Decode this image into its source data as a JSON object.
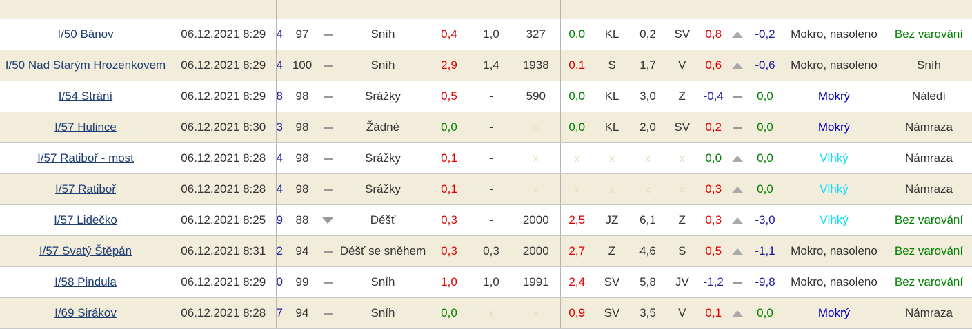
{
  "colors": {
    "red": "#e00000",
    "green": "#008000",
    "blue": "#0000c0",
    "cyan": "#00e0ff",
    "row_alt": "#f2ecda"
  },
  "rows": [
    {
      "name": "",
      "time": "",
      "c": "",
      "h": "",
      "trend1": "",
      "precip": "",
      "t1": "",
      "t2": "",
      "t3": "",
      "t4": "",
      "wind": "",
      "t5": "",
      "dir": "",
      "t6": "",
      "trend2": "",
      "t7": "",
      "state": "",
      "warn": ""
    },
    {
      "name": "I/50 Bánov",
      "time": "06.12.2021 8:29",
      "c": "4",
      "h": "97",
      "trend1": "dash-icon",
      "precip": "Sníh",
      "t1": "0,4",
      "t2": "1,0",
      "t3": "327",
      "t4": "0,0",
      "wind": "KL",
      "t5": "0,2",
      "dir": "SV",
      "t6": "0,8",
      "trend2": "up-icon",
      "t7": "-0,2",
      "state": "Mokro, nasoleno",
      "warn": "Bez varování"
    },
    {
      "name": "I/50 Nad Starým Hrozenkovem",
      "time": "06.12.2021 8:29",
      "c": "4",
      "h": "100",
      "trend1": "dash-icon",
      "precip": "Sníh",
      "t1": "2,9",
      "t2": "1,4",
      "t3": "1938",
      "t4": "0,1",
      "wind": "S",
      "t5": "1,7",
      "dir": "V",
      "t6": "0,6",
      "trend2": "up-icon",
      "t7": "-0,6",
      "state": "Mokro, nasoleno",
      "warn": "Sníh"
    },
    {
      "name": "I/54 Strání",
      "time": "06.12.2021 8:29",
      "c": "8",
      "h": "98",
      "trend1": "dash-icon",
      "precip": "Srážky",
      "t1": "0,5",
      "t2": "-",
      "t3": "590",
      "t4": "0,0",
      "wind": "KL",
      "t5": "3,0",
      "dir": "Z",
      "t6": "-0,4",
      "trend2": "dash-icon",
      "t7": "0,0",
      "state": "Mokrý",
      "warn": "Náledí"
    },
    {
      "name": "I/57 Hulince",
      "time": "06.12.2021 8:30",
      "c": "3",
      "h": "98",
      "trend1": "dash-icon",
      "precip": "Žádné",
      "t1": "0,0",
      "t2": "-",
      "t3": "x",
      "t4": "0,0",
      "wind": "KL",
      "t5": "2,0",
      "dir": "SV",
      "t6": "0,2",
      "trend2": "dash-icon",
      "t7": "0,0",
      "state": "Mokrý",
      "warn": "Námraza"
    },
    {
      "name": "I/57 Ratiboř - most",
      "time": "06.12.2021 8:28",
      "c": "4",
      "h": "98",
      "trend1": "dash-icon",
      "precip": "Srážky",
      "t1": "0,1",
      "t2": "-",
      "t3": "x",
      "t4": "x",
      "wind": "x",
      "t5": "x",
      "dir": "x",
      "t6": "0,0",
      "trend2": "up-icon",
      "t7": "0,0",
      "state": "Vlhký",
      "warn": "Námraza"
    },
    {
      "name": "I/57 Ratiboř",
      "time": "06.12.2021 8:28",
      "c": "4",
      "h": "98",
      "trend1": "dash-icon",
      "precip": "Srážky",
      "t1": "0,1",
      "t2": "-",
      "t3": "x",
      "t4": "x",
      "wind": "x",
      "t5": "x",
      "dir": "x",
      "t6": "0,3",
      "trend2": "up-icon",
      "t7": "0,0",
      "state": "Vlhký",
      "warn": "Námraza"
    },
    {
      "name": "I/57 Lidečko",
      "time": "06.12.2021 8:25",
      "c": "9",
      "h": "88",
      "trend1": "down-icon",
      "precip": "Déšť",
      "t1": "0,3",
      "t2": "-",
      "t3": "2000",
      "t4": "2,5",
      "wind": "JZ",
      "t5": "6,1",
      "dir": "Z",
      "t6": "0,3",
      "trend2": "up-icon",
      "t7": "-3,0",
      "state": "Vlhký",
      "warn": "Bez varování"
    },
    {
      "name": "I/57 Svatý Štěpán",
      "time": "06.12.2021 8:31",
      "c": "2",
      "h": "94",
      "trend1": "dash-icon",
      "precip": "Déšť se sněhem",
      "t1": "0,3",
      "t2": "0,3",
      "t3": "2000",
      "t4": "2,7",
      "wind": "Z",
      "t5": "4,6",
      "dir": "S",
      "t6": "0,5",
      "trend2": "up-icon",
      "t7": "-1,1",
      "state": "Mokro, nasoleno",
      "warn": "Bez varování"
    },
    {
      "name": "I/58 Pindula",
      "time": "06.12.2021 8:29",
      "c": "0",
      "h": "99",
      "trend1": "dash-icon",
      "precip": "Sníh",
      "t1": "1,0",
      "t2": "1,0",
      "t3": "1991",
      "t4": "2,4",
      "wind": "SV",
      "t5": "5,8",
      "dir": "JV",
      "t6": "-1,2",
      "trend2": "dash-icon",
      "t7": "-9,8",
      "state": "Mokro, nasoleno",
      "warn": "Bez varování"
    },
    {
      "name": "I/69 Sirákov",
      "time": "06.12.2021 8:28",
      "c": "7",
      "h": "94",
      "trend1": "dash-icon",
      "precip": "Sníh",
      "t1": "0,0",
      "t2": "x",
      "t3": "x",
      "t4": "0,9",
      "wind": "SV",
      "t5": "3,5",
      "dir": "V",
      "t6": "0,1",
      "trend2": "up-icon",
      "t7": "0,0",
      "state": "Mokrý",
      "warn": "Námraza"
    }
  ]
}
